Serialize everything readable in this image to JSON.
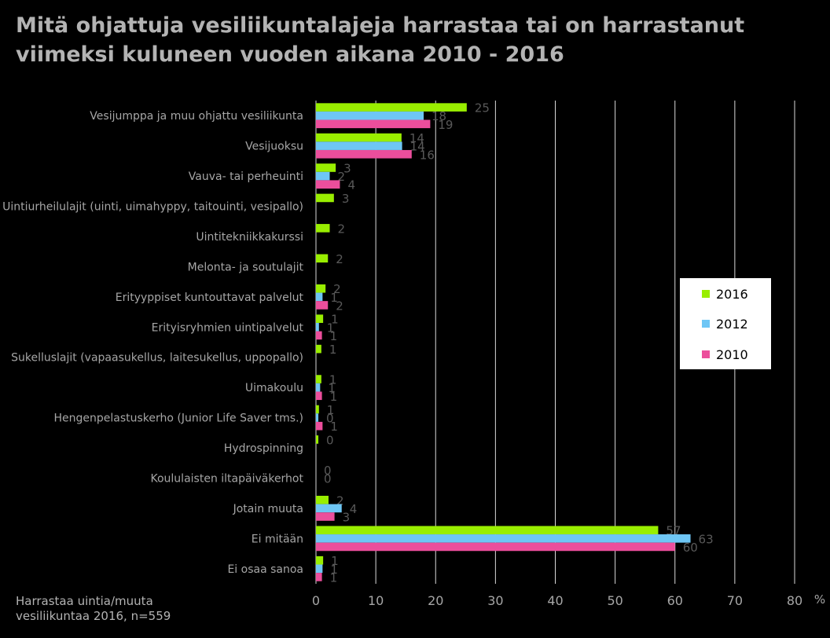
{
  "title_line1": "Mitä ohjattuja vesiliikuntalajeja harrastaa tai on harrastanut",
  "title_line2": "viimeksi kuluneen vuoden aikana 2010 - 2016",
  "note_line1": "Harrastaa uintia/muuta",
  "note_line2": "vesiliikuntaa 2016, n=559",
  "colors": {
    "2016": "#99ee00",
    "2012": "#6ec6f5",
    "2010": "#ec4e9c"
  },
  "chart_data": {
    "type": "bar",
    "orientation": "horizontal",
    "categories": [
      "Vesijumppa ja muu ohjattu vesiliikunta",
      "Vesijuoksu",
      "Vauva- tai perheuinti",
      "Uintiurheilulajit (uinti, uimahyppy, taitouinti, vesipallo)",
      "Uintitekniikkakurssi",
      "Melonta- ja soutulajit",
      "Erityyppiset kuntouttavat palvelut",
      "Erityisryhmien uintipalvelut",
      "Sukelluslajit (vapaasukellus, laitesukellus, uppopallo)",
      "Uimakoulu",
      "Hengenpelastuskerho (Junior Life Saver tms.)",
      "Hydrospinning",
      "Koululaisten iltapäiväkerhot",
      "Jotain muuta",
      "Ei mitään",
      "Ei osaa sanoa"
    ],
    "series": [
      {
        "name": "2016",
        "values": [
          25,
          14,
          3,
          3,
          2,
          2,
          2,
          1,
          1,
          1,
          1,
          0,
          0,
          2,
          57,
          1
        ],
        "labels": [
          "25",
          "14",
          "3",
          "3",
          "2",
          "2",
          "2",
          "1",
          "1",
          "1",
          "1",
          "0",
          "0",
          "2",
          "57",
          "1"
        ],
        "bar_values": [
          25.2,
          14.3,
          3.3,
          3.0,
          2.3,
          2.0,
          1.6,
          1.2,
          0.9,
          0.9,
          0.5,
          0.4,
          null,
          2.1,
          57.2,
          1.2
        ]
      },
      {
        "name": "2012",
        "values": [
          18,
          14,
          2,
          null,
          null,
          null,
          1,
          1,
          null,
          1,
          0,
          null,
          null,
          4,
          63,
          1
        ],
        "labels": [
          "18",
          "14",
          "2",
          "",
          "",
          "",
          "1",
          "1",
          "",
          "1",
          "0",
          "",
          "",
          "4",
          "63",
          "1"
        ],
        "bar_values": [
          18.0,
          14.4,
          2.3,
          null,
          null,
          null,
          1.1,
          0.5,
          null,
          0.7,
          0.4,
          null,
          null,
          4.3,
          62.6,
          1.1
        ]
      },
      {
        "name": "2010",
        "values": [
          19,
          16,
          4,
          null,
          null,
          null,
          2,
          1,
          null,
          1,
          1,
          null,
          null,
          3,
          60,
          1
        ],
        "labels": [
          "19",
          "16",
          "4",
          "",
          "",
          "",
          "2",
          "1",
          "",
          "1",
          "1",
          "",
          "",
          "3",
          "60",
          "1"
        ],
        "bar_values": [
          19.1,
          16.0,
          4.0,
          null,
          null,
          null,
          2.0,
          1.0,
          null,
          1.0,
          1.1,
          null,
          null,
          3.1,
          60.0,
          1.0
        ]
      }
    ],
    "special_labels": [
      {
        "category_index": 12,
        "text": "0"
      }
    ],
    "xlim": [
      0,
      80
    ],
    "xticks": [
      "0",
      "10",
      "20",
      "30",
      "40",
      "50",
      "60",
      "70",
      "80"
    ],
    "xunit": "%",
    "grid": true,
    "legend": {
      "position": "right",
      "entries": [
        "2016",
        "2012",
        "2010"
      ]
    }
  }
}
